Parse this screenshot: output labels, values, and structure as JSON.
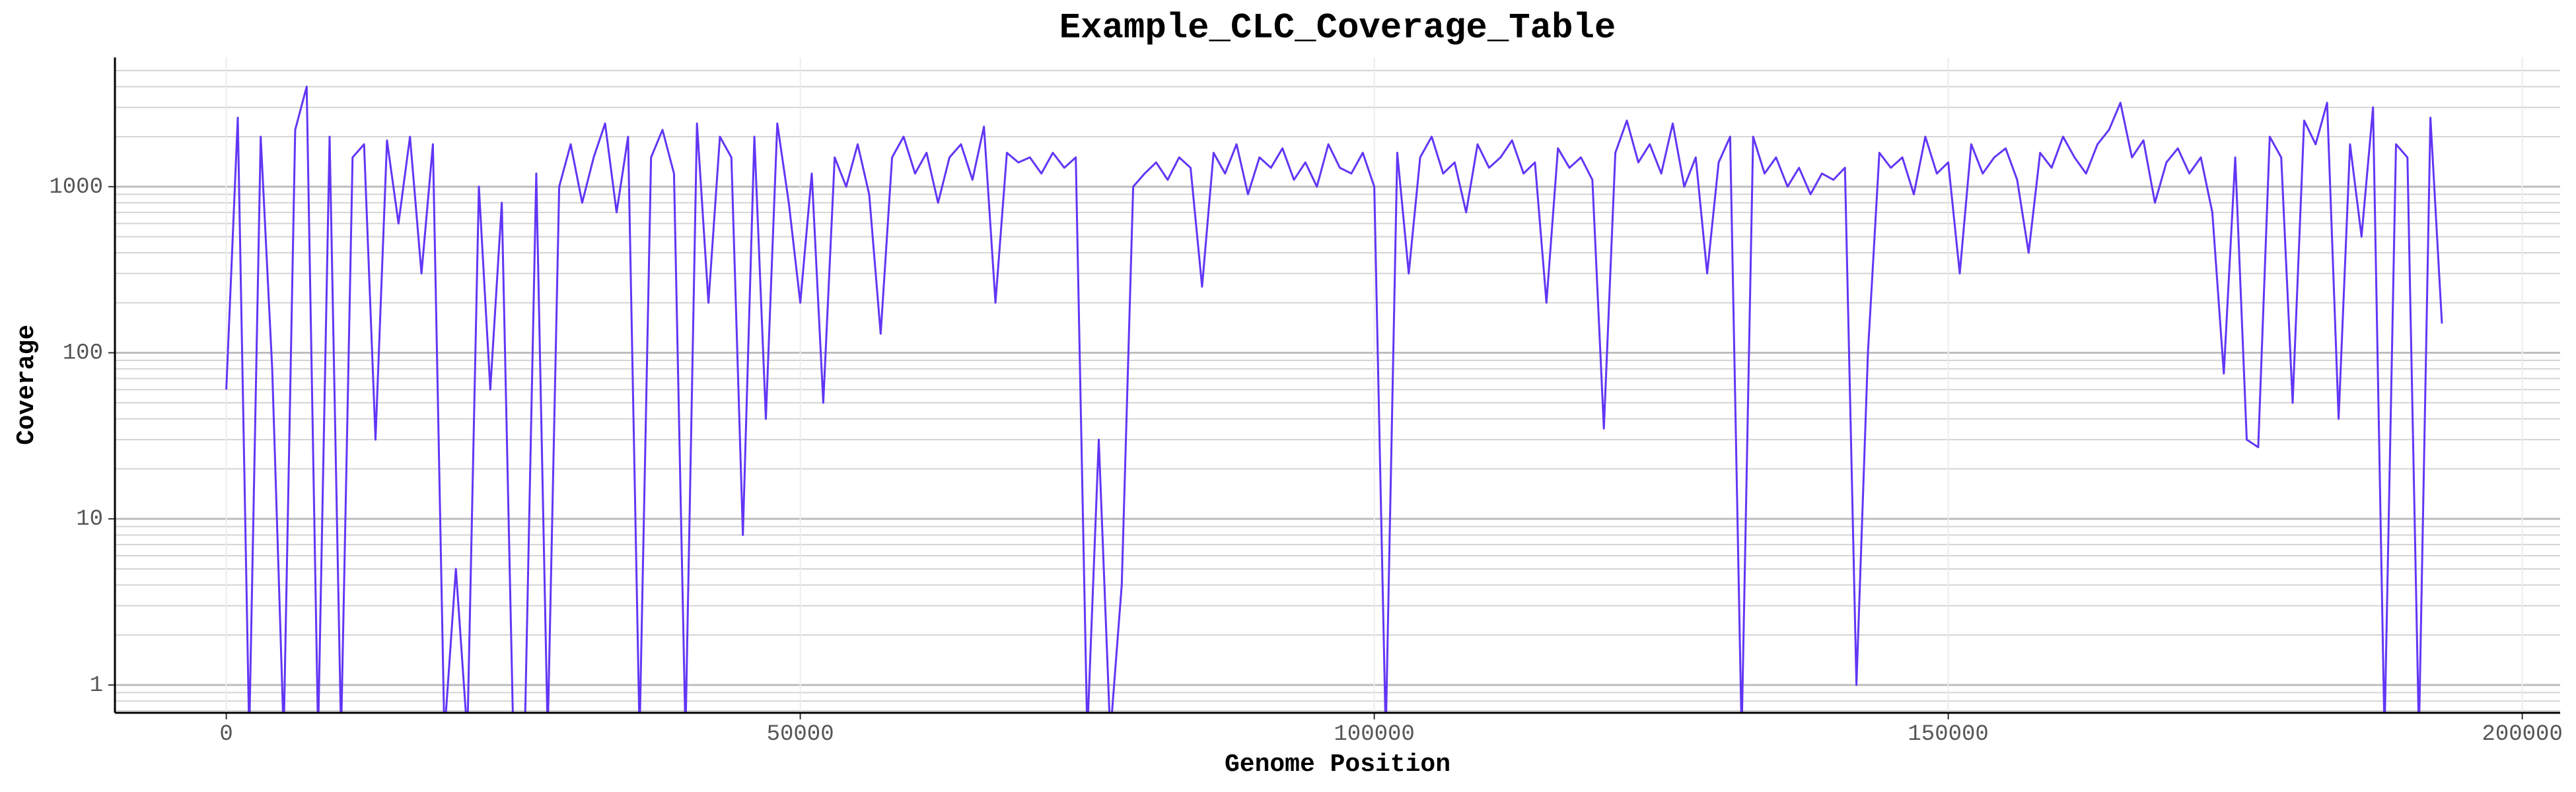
{
  "chart_data": {
    "type": "line",
    "title": "Example_CLC_Coverage_Table",
    "x_label": "Genome Position",
    "y_label": "Coverage",
    "color": "#6236f5",
    "log_y": true,
    "grid": true,
    "minor_grid": true,
    "xlim": [
      -9700,
      203300
    ],
    "xticks": [
      0,
      50000,
      100000,
      150000,
      200000
    ],
    "ylim": [
      0.68,
      6000
    ],
    "yticks": [
      1,
      10,
      100,
      1000
    ],
    "x": [
      0,
      1000,
      2000,
      3000,
      4000,
      5000,
      6000,
      7000,
      8000,
      9000,
      10000,
      11000,
      12000,
      13000,
      14000,
      15000,
      16000,
      17000,
      18000,
      19000,
      20000,
      21000,
      22000,
      23000,
      24000,
      25000,
      26000,
      27000,
      28000,
      29000,
      30000,
      31000,
      32000,
      33000,
      34000,
      35000,
      36000,
      37000,
      38000,
      39000,
      40000,
      41000,
      42000,
      43000,
      44000,
      45000,
      46000,
      47000,
      48000,
      49000,
      50000,
      51000,
      52000,
      53000,
      54000,
      55000,
      56000,
      57000,
      58000,
      59000,
      60000,
      61000,
      62000,
      63000,
      64000,
      65000,
      66000,
      67000,
      68000,
      69000,
      70000,
      71000,
      72000,
      73000,
      74000,
      75000,
      76000,
      77000,
      78000,
      79000,
      80000,
      81000,
      82000,
      83000,
      84000,
      85000,
      86000,
      87000,
      88000,
      89000,
      90000,
      91000,
      92000,
      93000,
      94000,
      95000,
      96000,
      97000,
      98000,
      99000,
      100000,
      101000,
      102000,
      103000,
      104000,
      105000,
      106000,
      107000,
      108000,
      109000,
      110000,
      111000,
      112000,
      113000,
      114000,
      115000,
      116000,
      117000,
      118000,
      119000,
      120000,
      121000,
      122000,
      123000,
      124000,
      125000,
      126000,
      127000,
      128000,
      129000,
      130000,
      131000,
      132000,
      133000,
      134000,
      135000,
      136000,
      137000,
      138000,
      139000,
      140000,
      141000,
      142000,
      143000,
      144000,
      145000,
      146000,
      147000,
      148000,
      149000,
      150000,
      151000,
      152000,
      153000,
      154000,
      155000,
      156000,
      157000,
      158000,
      159000,
      160000,
      161000,
      162000,
      163000,
      164000,
      165000,
      166000,
      167000,
      168000,
      169000,
      170000,
      171000,
      172000,
      173000,
      174000,
      175000,
      176000,
      177000,
      178000,
      179000,
      180000,
      181000,
      182000,
      183000,
      184000,
      185000,
      186000,
      187000,
      188000,
      189000,
      190000,
      191000,
      192000,
      193000
    ],
    "values": [
      60,
      2600,
      0.5,
      2000,
      80,
      0.5,
      2200,
      4000,
      0.5,
      2000,
      0.5,
      1500,
      1800,
      30,
      1900,
      600,
      2000,
      300,
      1800,
      0.5,
      5,
      0.5,
      1000,
      60,
      800,
      0.5,
      0.5,
      1200,
      0.5,
      1000,
      1800,
      800,
      1500,
      2400,
      700,
      2000,
      0.5,
      1500,
      2200,
      1200,
      0.5,
      2400,
      200,
      2000,
      1500,
      8,
      2000,
      40,
      2400,
      800,
      200,
      1200,
      50,
      1500,
      1000,
      1800,
      900,
      130,
      1500,
      2000,
      1200,
      1600,
      800,
      1500,
      1800,
      1100,
      2300,
      200,
      1600,
      1400,
      1500,
      1200,
      1600,
      1300,
      1500,
      0.5,
      30,
      0.5,
      4,
      1000,
      1200,
      1400,
      1100,
      1500,
      1300,
      250,
      1600,
      1200,
      1800,
      900,
      1500,
      1300,
      1700,
      1100,
      1400,
      1000,
      1800,
      1300,
      1200,
      1600,
      1000,
      0.5,
      1600,
      300,
      1500,
      2000,
      1200,
      1400,
      700,
      1800,
      1300,
      1500,
      1900,
      1200,
      1400,
      200,
      1700,
      1300,
      1500,
      1100,
      35,
      1600,
      2500,
      1400,
      1800,
      1200,
      2400,
      1000,
      1500,
      300,
      1400,
      2000,
      0.5,
      2000,
      1200,
      1500,
      1000,
      1300,
      900,
      1200,
      1100,
      1300,
      1,
      100,
      1600,
      1300,
      1500,
      900,
      2000,
      1200,
      1400,
      300,
      1800,
      1200,
      1500,
      1700,
      1100,
      400,
      1600,
      1300,
      2000,
      1500,
      1200,
      1800,
      2200,
      3200,
      1500,
      1900,
      800,
      1400,
      1700,
      1200,
      1500,
      700,
      75,
      1500,
      30,
      27,
      2000,
      1500,
      50,
      2500,
      1800,
      3200,
      40,
      1800,
      500,
      3000,
      0.5,
      1800,
      1500,
      0.5,
      2600,
      150
    ]
  }
}
